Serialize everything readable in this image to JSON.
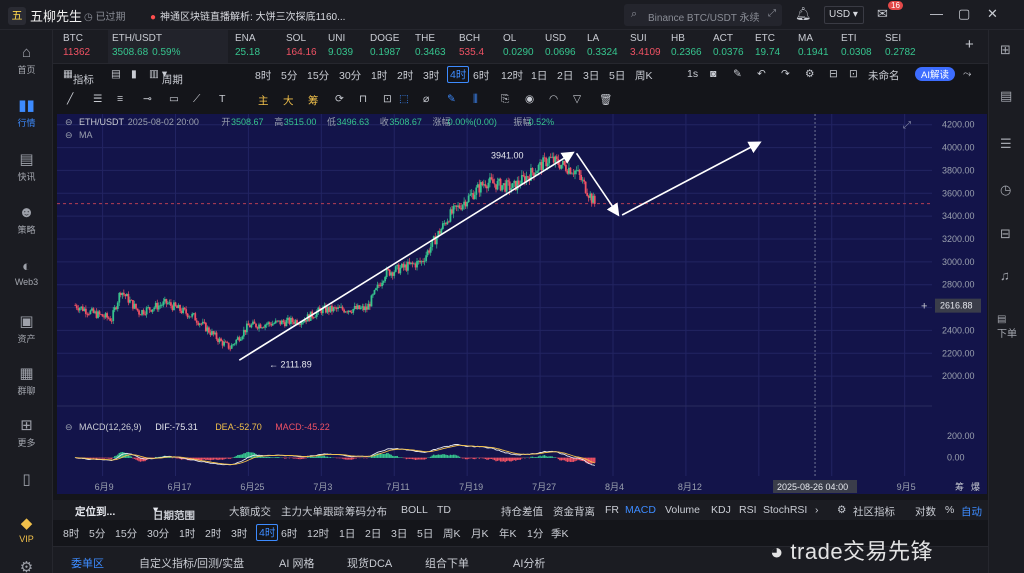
{
  "app": {
    "name": "五柳先生",
    "expired": "已过期",
    "news": "神通区块链直播解析:    大饼三次探底1160..."
  },
  "search": {
    "placeholder": "Binance BTC/USDT 永续"
  },
  "header": {
    "currency": "USD",
    "notifications": "16"
  },
  "leftnav": [
    {
      "label": "首页",
      "icon": "home-icon"
    },
    {
      "label": "行情",
      "icon": "chart-bar-icon",
      "active": true
    },
    {
      "label": "快讯",
      "icon": "news-icon"
    },
    {
      "label": "策略",
      "icon": "robot-icon"
    },
    {
      "label": "Web3",
      "icon": "web3-icon"
    },
    {
      "label": "资产",
      "icon": "wallet-icon"
    },
    {
      "label": "群聊",
      "icon": "chat-icon"
    },
    {
      "label": "更多",
      "icon": "grid-icon"
    },
    {
      "label": "VIP",
      "icon": "diamond-icon"
    }
  ],
  "tickers": [
    {
      "name": "BTC",
      "price": "11362",
      "dir": "down"
    },
    {
      "name": "ETH/USDT",
      "price": "3508.68",
      "change": "0.59%",
      "dir": "up",
      "active": true
    },
    {
      "name": "ENA",
      "price": "25.18",
      "dir": "up"
    },
    {
      "name": "SOL",
      "price": "164.16",
      "dir": "down"
    },
    {
      "name": "UNI",
      "price": "9.039",
      "dir": "up"
    },
    {
      "name": "DOGE",
      "price": "0.1987",
      "dir": "up"
    },
    {
      "name": "THE",
      "price": "0.3463",
      "dir": "up"
    },
    {
      "name": "BCH",
      "price": "535.4",
      "dir": "down"
    },
    {
      "name": "OL",
      "price": "0.0290",
      "dir": "up"
    },
    {
      "name": "USD",
      "price": "0.0696",
      "dir": "up"
    },
    {
      "name": "LA",
      "price": "0.3324",
      "dir": "up"
    },
    {
      "name": "SUI",
      "price": "3.4109",
      "dir": "down"
    },
    {
      "name": "HB",
      "price": "0.2366",
      "dir": "up"
    },
    {
      "name": "ACT",
      "price": "0.0376",
      "dir": "up"
    },
    {
      "name": "ETC",
      "price": "19.74",
      "dir": "up"
    },
    {
      "name": "MA",
      "price": "0.1941",
      "dir": "up"
    },
    {
      "name": "ETI",
      "price": "0.0308",
      "dir": "up"
    },
    {
      "name": "SEI",
      "price": "0.2782",
      "dir": "up"
    }
  ],
  "toolbar": {
    "indicator": "指标",
    "period": "周期",
    "timeframes": [
      "8时",
      "5分",
      "15分",
      "30分",
      "1时",
      "2时",
      "3时",
      "4时",
      "6时",
      "12时",
      "1日",
      "2日",
      "3日",
      "5日",
      "周K"
    ],
    "active_timeframe": "4时",
    "right": [
      "1s",
      "未命名",
      "AI解读"
    ]
  },
  "drawbar": {
    "zhu": "主",
    "da": "大",
    "chou": "筹"
  },
  "legend": {
    "symbol": "ETH/USDT",
    "datetime": "2025-08-02 20:00",
    "open_label": "开",
    "open": "3508.67",
    "high_label": "高",
    "high": "3515.00",
    "low_label": "低",
    "low": "3496.63",
    "close_label": "收",
    "close": "3508.67",
    "chg_label": "涨幅",
    "chg": "0.00%(0.00)",
    "amp_label": "振幅",
    "amp": "0.52%",
    "ma": "MA"
  },
  "chart_data": {
    "type": "candlestick",
    "symbol": "ETH/USDT",
    "interval": "4时",
    "ylim": [
      1800,
      4250
    ],
    "y_ticks": [
      4200,
      4000,
      3800,
      3600,
      3400,
      3200,
      3000,
      2800,
      2600,
      2400,
      2200,
      2000
    ],
    "x_ticks": [
      "6月9",
      "6月17",
      "6月25",
      "7月3",
      "7月11",
      "7月19",
      "7月27",
      "8月4",
      "8月12",
      "8月2",
      "8月26",
      "9月5"
    ],
    "crosshair_date": "2025-08-26 04:00",
    "crosshair_price": "2616.88",
    "dashed_level": 3508.67,
    "annotations": [
      {
        "label": "3941.00",
        "value": 3941
      },
      {
        "label": "2111.89",
        "value": 2111.89
      }
    ],
    "close_path": [
      [
        "6/6",
        2620
      ],
      [
        "6/8",
        2550
      ],
      [
        "6/10",
        2500
      ],
      [
        "6/11",
        2750
      ],
      [
        "6/13",
        2560
      ],
      [
        "6/16",
        2640
      ],
      [
        "6/19",
        2520
      ],
      [
        "6/22",
        2300
      ],
      [
        "6/23",
        2250
      ],
      [
        "6/25",
        2440
      ],
      [
        "7/1",
        2490
      ],
      [
        "7/3",
        2580
      ],
      [
        "7/8",
        2590
      ],
      [
        "7/10",
        2900
      ],
      [
        "7/14",
        3000
      ],
      [
        "7/17",
        3400
      ],
      [
        "7/21",
        3700
      ],
      [
        "7/24",
        3650
      ],
      [
        "7/28",
        3900
      ],
      [
        "7/31",
        3790
      ],
      [
        "8/2",
        3508.67
      ]
    ],
    "macd": {
      "label": "MACD(12,26,9)",
      "dif_label": "DIF",
      "dif": "-75.31",
      "dea_label": "DEA",
      "dea": "-52.70",
      "macd_label": "MACD",
      "macd": "-45.22",
      "ylim": [
        -150,
        400
      ],
      "y_ticks": [
        200,
        0
      ]
    }
  },
  "indicator_bar": {
    "locate": "定位到...",
    "range": "日期范围",
    "items": [
      "大额成交",
      "主力大单跟踪",
      "筹码分布",
      "BOLL",
      "TD",
      "持仓差值",
      "资金背离",
      "FR",
      "MACD",
      "Volume",
      "KDJ",
      "RSI",
      "StochRSI"
    ],
    "active": "MACD",
    "right": [
      "社区指标",
      "对数",
      "%",
      "自动"
    ]
  },
  "periods2": [
    "8时",
    "5分",
    "15分",
    "30分",
    "1时",
    "2时",
    "3时",
    "4时",
    "6时",
    "12时",
    "1日",
    "2日",
    "3日",
    "5日",
    "周K",
    "月K",
    "年K",
    "1分",
    "季K"
  ],
  "active_period2": "4时",
  "bottom_tabs": [
    "委单区",
    "自定义指标/回测/实盘",
    "AI 网格",
    "现货DCA",
    "组合下单",
    "AI分析"
  ],
  "right_panel": {
    "down": "下单"
  },
  "watermark": "trade交易先锋",
  "right_axis_extra": [
    "筹",
    "爆"
  ]
}
